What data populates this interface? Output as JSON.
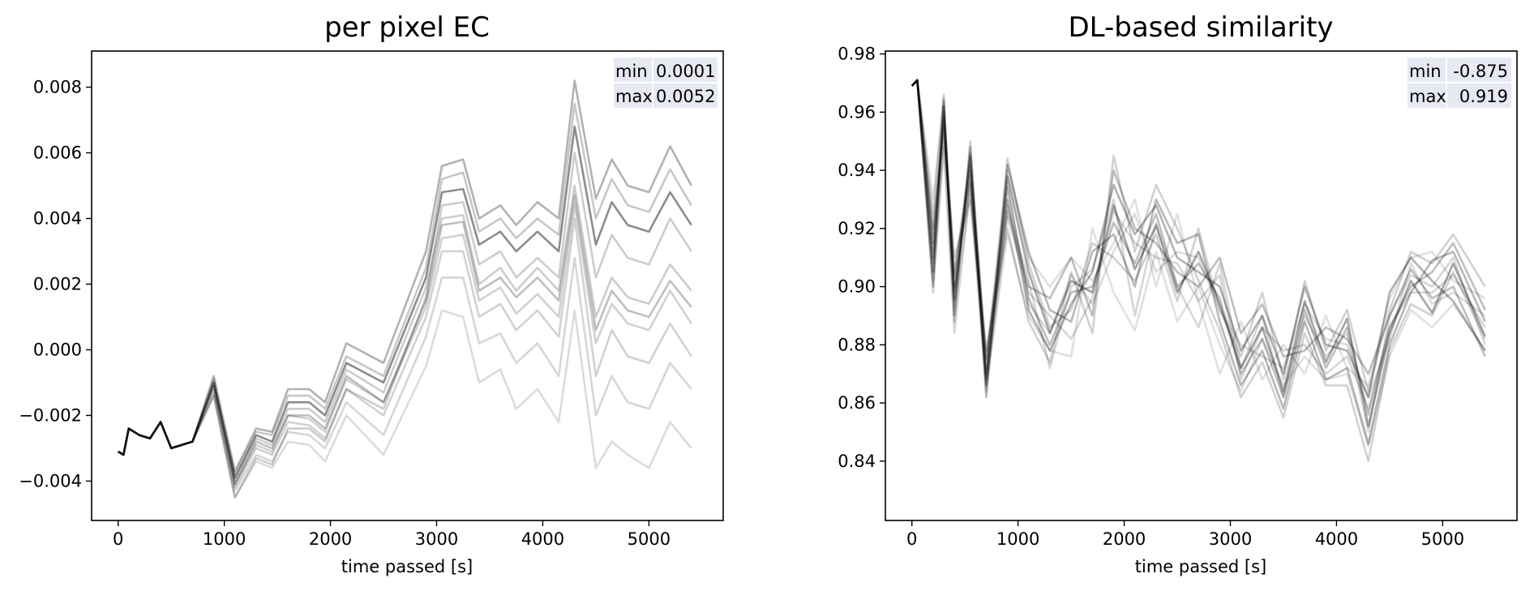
{
  "chart_data": [
    {
      "type": "line",
      "title": "per pixel EC",
      "xlabel": "time passed [s]",
      "ylabel": "",
      "xlim": [
        -250,
        5700
      ],
      "ylim": [
        -0.0052,
        0.0091
      ],
      "xticks": [
        0,
        1000,
        2000,
        3000,
        4000,
        5000
      ],
      "xtick_labels": [
        "0",
        "1000",
        "2000",
        "3000",
        "4000",
        "5000"
      ],
      "yticks": [
        -0.004,
        -0.002,
        0.0,
        0.002,
        0.004,
        0.006,
        0.008
      ],
      "ytick_labels": [
        "−0.004",
        "−0.002",
        "0.000",
        "0.002",
        "0.004",
        "0.006",
        "0.008"
      ],
      "grid": false,
      "stats_box": {
        "position": "top-right",
        "rows": [
          {
            "label": "min",
            "value": "0.0001"
          },
          {
            "label": "max",
            "value": "0.0052"
          }
        ]
      },
      "line_color": "#000000",
      "x": [
        0,
        50,
        100,
        200,
        300,
        400,
        500,
        700,
        900,
        1100,
        1300,
        1450,
        1600,
        1800,
        1950,
        2150,
        2500,
        2900,
        3050,
        3250,
        3400,
        3600,
        3750,
        3950,
        4150,
        4300,
        4500,
        4650,
        4800,
        5000,
        5200,
        5400
      ],
      "series": [
        {
          "values": [
            -0.0031,
            -0.0032,
            -0.0024,
            -0.0026,
            -0.0027,
            -0.0022,
            -0.003,
            -0.0028,
            -0.0011,
            -0.0041,
            -0.0028,
            -0.003,
            -0.002,
            -0.002,
            -0.0024,
            -0.0008,
            -0.0016,
            0.0015,
            0.0038,
            0.0039,
            0.0018,
            0.0022,
            0.0016,
            0.0022,
            0.0015,
            0.0047,
            0.0006,
            0.0018,
            0.0012,
            0.001,
            0.0021,
            0.0013
          ],
          "alpha": 0.25
        },
        {
          "values": [
            -0.0031,
            -0.0032,
            -0.0024,
            -0.0026,
            -0.0027,
            -0.0022,
            -0.003,
            -0.0028,
            -0.001,
            -0.0039,
            -0.0026,
            -0.0028,
            -0.0016,
            -0.0016,
            -0.002,
            -0.0004,
            -0.001,
            0.0022,
            0.0048,
            0.0049,
            0.0032,
            0.0036,
            0.003,
            0.0036,
            0.003,
            0.0068,
            0.0032,
            0.0045,
            0.0038,
            0.0036,
            0.0048,
            0.0038
          ],
          "alpha": 0.45
        },
        {
          "values": [
            -0.0031,
            -0.0032,
            -0.0024,
            -0.0026,
            -0.0027,
            -0.0022,
            -0.003,
            -0.0028,
            -0.0008,
            -0.0037,
            -0.0024,
            -0.0025,
            -0.0012,
            -0.0012,
            -0.0016,
            0.0002,
            -0.0004,
            0.003,
            0.0056,
            0.0058,
            0.004,
            0.0044,
            0.0038,
            0.0045,
            0.004,
            0.0082,
            0.0046,
            0.0058,
            0.005,
            0.0048,
            0.0062,
            0.005
          ],
          "alpha": 0.3
        },
        {
          "values": [
            -0.0031,
            -0.0032,
            -0.0024,
            -0.0026,
            -0.0027,
            -0.0022,
            -0.003,
            -0.0028,
            -0.0009,
            -0.004,
            -0.0027,
            -0.0029,
            -0.0018,
            -0.0018,
            -0.0022,
            -0.0006,
            -0.0013,
            0.0019,
            0.004,
            0.0041,
            0.002,
            0.0025,
            0.0018,
            0.0025,
            0.0018,
            0.005,
            0.001,
            0.0022,
            0.0016,
            0.0014,
            0.0026,
            0.0018
          ],
          "alpha": 0.2
        },
        {
          "values": [
            -0.0031,
            -0.0032,
            -0.0024,
            -0.0026,
            -0.0027,
            -0.0022,
            -0.003,
            -0.0028,
            -0.0012,
            -0.0042,
            -0.003,
            -0.0032,
            -0.0022,
            -0.0023,
            -0.0027,
            -0.0012,
            -0.002,
            0.001,
            0.003,
            0.003,
            0.001,
            0.0014,
            0.0006,
            0.0012,
            0.0004,
            0.004,
            -0.0008,
            0.0006,
            -0.0002,
            -0.0004,
            0.0008,
            -0.0002
          ],
          "alpha": 0.18
        },
        {
          "values": [
            -0.0031,
            -0.0032,
            -0.0024,
            -0.0026,
            -0.0027,
            -0.0022,
            -0.003,
            -0.0028,
            -0.0013,
            -0.0043,
            -0.0032,
            -0.0034,
            -0.0025,
            -0.0026,
            -0.003,
            -0.0016,
            -0.0026,
            0.0004,
            0.0022,
            0.0022,
            0.0002,
            0.0005,
            -0.0004,
            0.0002,
            -0.0008,
            0.0028,
            -0.002,
            -0.0008,
            -0.0016,
            -0.0018,
            -0.0004,
            -0.0012
          ],
          "alpha": 0.16
        },
        {
          "values": [
            -0.0031,
            -0.0032,
            -0.0024,
            -0.0026,
            -0.0027,
            -0.0022,
            -0.003,
            -0.0028,
            -0.0014,
            -0.0045,
            -0.0034,
            -0.0036,
            -0.0028,
            -0.0029,
            -0.0034,
            -0.002,
            -0.0032,
            -0.0005,
            0.0012,
            0.001,
            -0.001,
            -0.0006,
            -0.0018,
            -0.0012,
            -0.0022,
            0.0012,
            -0.0036,
            -0.0028,
            -0.0032,
            -0.0036,
            -0.0022,
            -0.003
          ],
          "alpha": 0.14
        },
        {
          "values": [
            -0.0031,
            -0.0032,
            -0.0024,
            -0.0026,
            -0.0027,
            -0.0022,
            -0.003,
            -0.0028,
            -0.0014,
            -0.0045,
            -0.0033,
            -0.0035,
            -0.0024,
            -0.0024,
            -0.0028,
            -0.0012,
            -0.0018,
            0.0016,
            0.0044,
            0.0045,
            0.0026,
            0.003,
            0.0022,
            0.0028,
            0.0022,
            0.006,
            0.0022,
            0.0035,
            0.0028,
            0.0026,
            0.004,
            0.003
          ],
          "alpha": 0.2
        },
        {
          "values": [
            -0.0031,
            -0.0032,
            -0.0024,
            -0.0026,
            -0.0027,
            -0.0022,
            -0.003,
            -0.0028,
            -0.001,
            -0.0038,
            -0.0025,
            -0.0026,
            -0.0014,
            -0.0014,
            -0.0018,
            -0.0002,
            -0.0008,
            0.0025,
            0.0052,
            0.0054,
            0.0036,
            0.004,
            0.0034,
            0.004,
            0.0035,
            0.0075,
            0.004,
            0.0052,
            0.0044,
            0.0042,
            0.0055,
            0.0044
          ],
          "alpha": 0.22
        },
        {
          "values": [
            -0.0031,
            -0.0032,
            -0.0024,
            -0.0026,
            -0.0027,
            -0.0022,
            -0.003,
            -0.0028,
            -0.0011,
            -0.0041,
            -0.0029,
            -0.0031,
            -0.002,
            -0.0021,
            -0.0025,
            -0.0009,
            -0.0016,
            0.0013,
            0.0034,
            0.0035,
            0.0015,
            0.0019,
            0.0011,
            0.0017,
            0.001,
            0.0044,
            0.0002,
            0.0014,
            0.0008,
            0.0006,
            0.0018,
            0.0008
          ],
          "alpha": 0.18
        }
      ]
    },
    {
      "type": "line",
      "title": "DL-based similarity",
      "xlabel": "time passed [s]",
      "ylabel": "",
      "xlim": [
        -250,
        5700
      ],
      "ylim": [
        0.8196,
        0.981
      ],
      "xticks": [
        0,
        1000,
        2000,
        3000,
        4000,
        5000
      ],
      "xtick_labels": [
        "0",
        "1000",
        "2000",
        "3000",
        "4000",
        "5000"
      ],
      "yticks": [
        0.84,
        0.86,
        0.88,
        0.9,
        0.92,
        0.94,
        0.96,
        0.98
      ],
      "ytick_labels": [
        "0.84",
        "0.86",
        "0.88",
        "0.90",
        "0.92",
        "0.94",
        "0.96",
        "0.98"
      ],
      "grid": false,
      "stats_box": {
        "position": "top-right",
        "rows": [
          {
            "label": "min",
            "value": "-0.875"
          },
          {
            "label": "max",
            "value": "0.919"
          }
        ]
      },
      "line_color": "#000000",
      "x": [
        0,
        50,
        200,
        300,
        400,
        550,
        700,
        900,
        1100,
        1300,
        1500,
        1700,
        1900,
        2100,
        2300,
        2500,
        2700,
        2900,
        3100,
        3300,
        3500,
        3700,
        3900,
        4100,
        4300,
        4500,
        4700,
        4900,
        5100,
        5400
      ],
      "series": [
        {
          "values": [
            0.969,
            0.971,
            0.905,
            0.962,
            0.896,
            0.945,
            0.868,
            0.938,
            0.905,
            0.884,
            0.902,
            0.898,
            0.928,
            0.906,
            0.921,
            0.898,
            0.912,
            0.894,
            0.872,
            0.886,
            0.864,
            0.895,
            0.874,
            0.889,
            0.852,
            0.884,
            0.902,
            0.891,
            0.908,
            0.883
          ],
          "alpha": 0.35
        },
        {
          "values": [
            0.969,
            0.971,
            0.915,
            0.958,
            0.904,
            0.94,
            0.875,
            0.93,
            0.892,
            0.878,
            0.894,
            0.905,
            0.935,
            0.918,
            0.928,
            0.91,
            0.905,
            0.9,
            0.878,
            0.89,
            0.87,
            0.9,
            0.88,
            0.878,
            0.862,
            0.898,
            0.91,
            0.902,
            0.895,
            0.878
          ],
          "alpha": 0.3
        },
        {
          "values": [
            0.969,
            0.971,
            0.9,
            0.964,
            0.89,
            0.948,
            0.862,
            0.942,
            0.912,
            0.892,
            0.888,
            0.912,
            0.918,
            0.9,
            0.93,
            0.915,
            0.918,
            0.888,
            0.866,
            0.878,
            0.858,
            0.888,
            0.868,
            0.872,
            0.846,
            0.88,
            0.898,
            0.909,
            0.912,
            0.888
          ],
          "alpha": 0.28
        },
        {
          "values": [
            0.969,
            0.971,
            0.92,
            0.955,
            0.9,
            0.936,
            0.87,
            0.926,
            0.9,
            0.896,
            0.91,
            0.89,
            0.94,
            0.92,
            0.915,
            0.905,
            0.9,
            0.91,
            0.884,
            0.894,
            0.876,
            0.878,
            0.886,
            0.882,
            0.87,
            0.89,
            0.906,
            0.896,
            0.9,
            0.876
          ],
          "alpha": 0.25
        },
        {
          "values": [
            0.969,
            0.971,
            0.91,
            0.96,
            0.895,
            0.942,
            0.866,
            0.934,
            0.896,
            0.88,
            0.898,
            0.9,
            0.922,
            0.908,
            0.925,
            0.9,
            0.908,
            0.896,
            0.87,
            0.882,
            0.862,
            0.892,
            0.872,
            0.886,
            0.856,
            0.886,
            0.9,
            0.905,
            0.915,
            0.892
          ],
          "alpha": 0.25
        },
        {
          "values": [
            0.969,
            0.971,
            0.908,
            0.952,
            0.91,
            0.93,
            0.878,
            0.92,
            0.888,
            0.874,
            0.905,
            0.884,
            0.945,
            0.912,
            0.935,
            0.92,
            0.902,
            0.885,
            0.862,
            0.874,
            0.855,
            0.884,
            0.866,
            0.866,
            0.84,
            0.878,
            0.894,
            0.89,
            0.905,
            0.882
          ],
          "alpha": 0.18
        },
        {
          "values": [
            0.969,
            0.971,
            0.925,
            0.966,
            0.888,
            0.95,
            0.872,
            0.944,
            0.908,
            0.886,
            0.892,
            0.915,
            0.91,
            0.902,
            0.918,
            0.895,
            0.92,
            0.892,
            0.876,
            0.898,
            0.868,
            0.902,
            0.878,
            0.892,
            0.864,
            0.892,
            0.912,
            0.908,
            0.918,
            0.9
          ],
          "alpha": 0.18
        },
        {
          "values": [
            0.969,
            0.971,
            0.898,
            0.948,
            0.884,
            0.935,
            0.864,
            0.924,
            0.898,
            0.89,
            0.882,
            0.896,
            0.926,
            0.915,
            0.91,
            0.908,
            0.895,
            0.904,
            0.868,
            0.886,
            0.878,
            0.88,
            0.87,
            0.876,
            0.858,
            0.886,
            0.898,
            0.898,
            0.904,
            0.886
          ],
          "alpha": 0.16
        },
        {
          "values": [
            0.969,
            0.971,
            0.912,
            0.957,
            0.898,
            0.938,
            0.868,
            0.928,
            0.902,
            0.872,
            0.9,
            0.906,
            0.93,
            0.89,
            0.922,
            0.9,
            0.886,
            0.908,
            0.872,
            0.89,
            0.862,
            0.89,
            0.876,
            0.884,
            0.85,
            0.89,
            0.904,
            0.9,
            0.91,
            0.88
          ],
          "alpha": 0.16
        },
        {
          "values": [
            0.969,
            0.971,
            0.918,
            0.962,
            0.905,
            0.944,
            0.876,
            0.936,
            0.894,
            0.884,
            0.904,
            0.894,
            0.912,
            0.925,
            0.905,
            0.912,
            0.91,
            0.892,
            0.88,
            0.876,
            0.872,
            0.894,
            0.882,
            0.88,
            0.862,
            0.882,
            0.908,
            0.894,
            0.898,
            0.89
          ],
          "alpha": 0.14
        },
        {
          "values": [
            0.969,
            0.971,
            0.902,
            0.95,
            0.892,
            0.932,
            0.866,
            0.918,
            0.89,
            0.878,
            0.876,
            0.92,
            0.898,
            0.885,
            0.912,
            0.888,
            0.9,
            0.88,
            0.864,
            0.882,
            0.866,
            0.876,
            0.868,
            0.87,
            0.845,
            0.876,
            0.892,
            0.886,
            0.894,
            0.878
          ],
          "alpha": 0.12
        },
        {
          "values": [
            0.969,
            0.971,
            0.93,
            0.965,
            0.9,
            0.946,
            0.87,
            0.94,
            0.91,
            0.9,
            0.91,
            0.902,
            0.915,
            0.93,
            0.9,
            0.925,
            0.895,
            0.87,
            0.888,
            0.868,
            0.88,
            0.87,
            0.89,
            0.872,
            0.866,
            0.896,
            0.91,
            0.912,
            0.902,
            0.896
          ],
          "alpha": 0.12
        }
      ]
    }
  ]
}
